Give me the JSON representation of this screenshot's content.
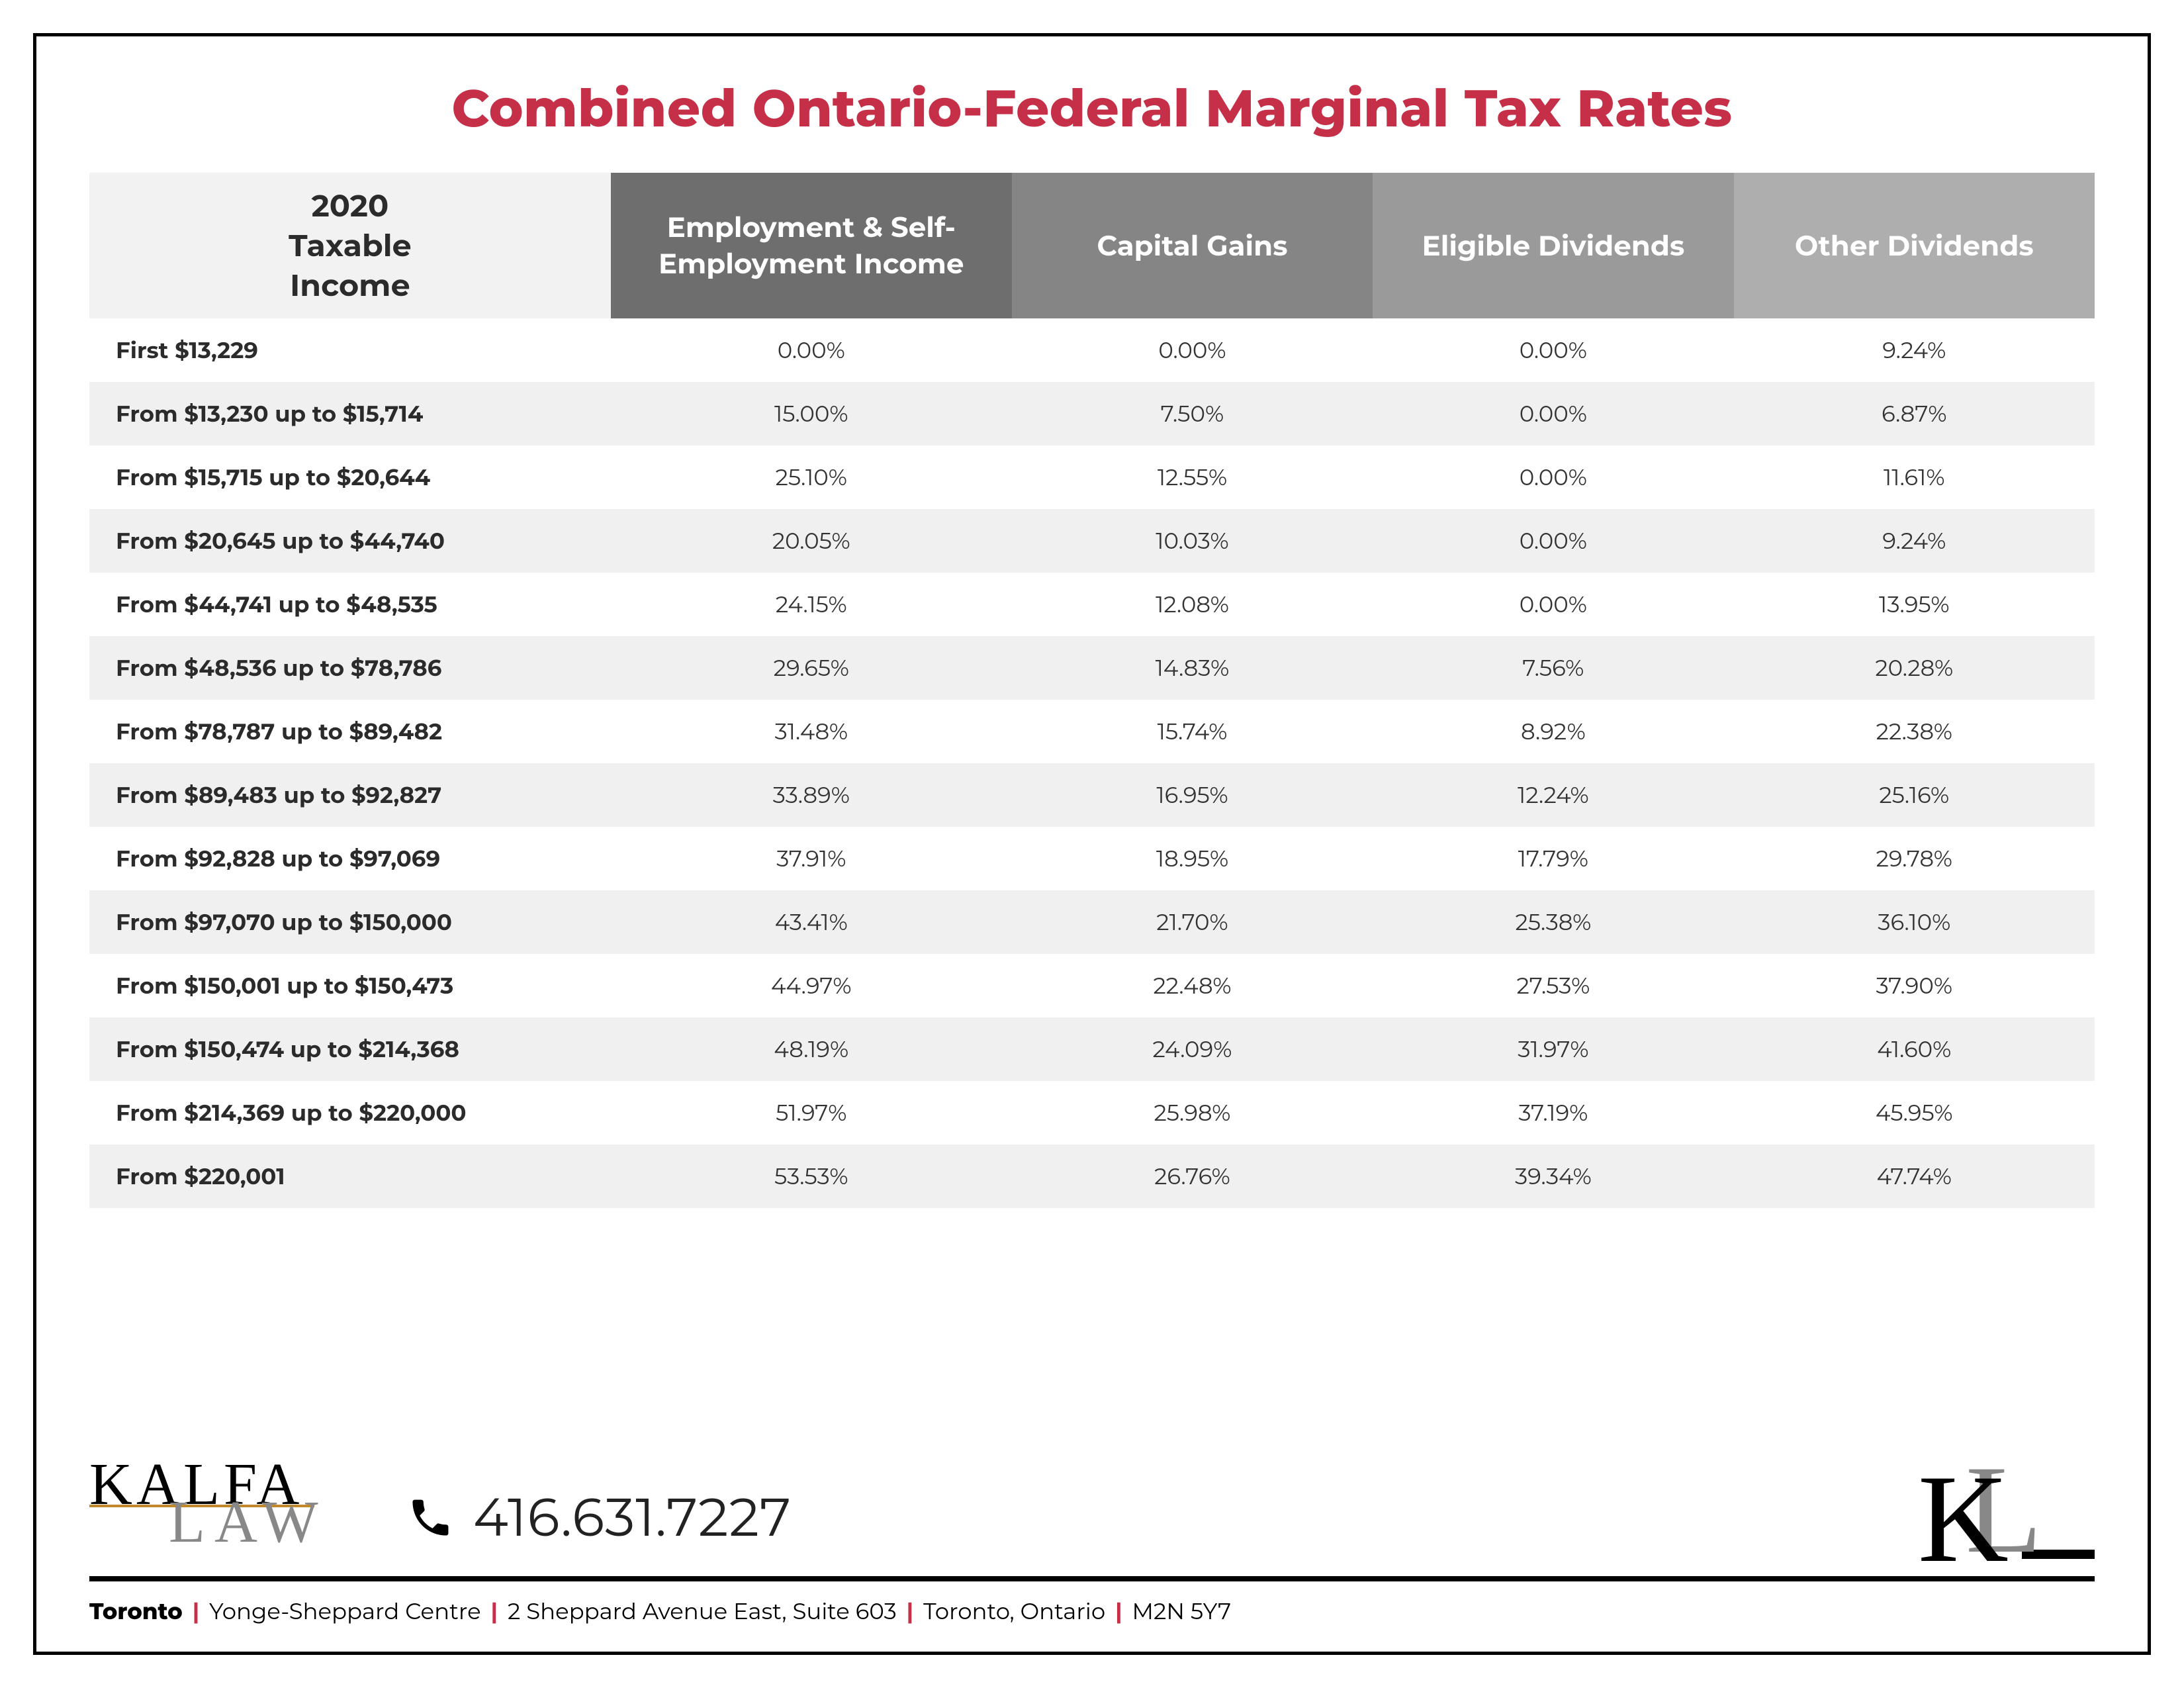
{
  "title": "Combined Ontario-Federal Marginal Tax Rates",
  "colors": {
    "accent": "#c53048",
    "header_bgs": [
      "#f2f2f2",
      "#6e6e6e",
      "#858585",
      "#9a9a9a",
      "#aeaeae"
    ],
    "row_alt": "#f0f0f0",
    "text": "#333333",
    "gold": "#c08a2a"
  },
  "table": {
    "columns": [
      "2020\nTaxable\nIncome",
      "Employment & Self-Employment Income",
      "Capital Gains",
      "Eligible Dividends",
      "Other Dividends"
    ],
    "rows": [
      {
        "bracket": "First $13,229",
        "v": [
          "0.00%",
          "0.00%",
          "0.00%",
          "9.24%"
        ]
      },
      {
        "bracket": "From $13,230 up to $15,714",
        "v": [
          "15.00%",
          "7.50%",
          "0.00%",
          "6.87%"
        ]
      },
      {
        "bracket": "From $15,715 up to $20,644",
        "v": [
          "25.10%",
          "12.55%",
          "0.00%",
          "11.61%"
        ]
      },
      {
        "bracket": "From $20,645 up to $44,740",
        "v": [
          "20.05%",
          "10.03%",
          "0.00%",
          "9.24%"
        ]
      },
      {
        "bracket": "From $44,741 up to $48,535",
        "v": [
          "24.15%",
          "12.08%",
          "0.00%",
          "13.95%"
        ]
      },
      {
        "bracket": "From $48,536 up to $78,786",
        "v": [
          "29.65%",
          "14.83%",
          "7.56%",
          "20.28%"
        ]
      },
      {
        "bracket": "From $78,787 up to $89,482",
        "v": [
          "31.48%",
          "15.74%",
          "8.92%",
          "22.38%"
        ]
      },
      {
        "bracket": "From $89,483 up to $92,827",
        "v": [
          "33.89%",
          "16.95%",
          "12.24%",
          "25.16%"
        ]
      },
      {
        "bracket": "From $92,828 up to $97,069",
        "v": [
          "37.91%",
          "18.95%",
          "17.79%",
          "29.78%"
        ]
      },
      {
        "bracket": "From $97,070 up to $150,000",
        "v": [
          "43.41%",
          "21.70%",
          "25.38%",
          "36.10%"
        ]
      },
      {
        "bracket": "From $150,001 up to $150,473",
        "v": [
          "44.97%",
          "22.48%",
          "27.53%",
          "37.90%"
        ]
      },
      {
        "bracket": "From $150,474 up to $214,368",
        "v": [
          "48.19%",
          "24.09%",
          "31.97%",
          "41.60%"
        ]
      },
      {
        "bracket": "From $214,369 up to $220,000",
        "v": [
          "51.97%",
          "25.98%",
          "37.19%",
          "45.95%"
        ]
      },
      {
        "bracket": "From $220,001",
        "v": [
          "53.53%",
          "26.76%",
          "39.34%",
          "47.74%"
        ]
      }
    ],
    "col_widths_pct": [
      26,
      20,
      18,
      18,
      18
    ]
  },
  "footer": {
    "logo_top": "KALFA",
    "logo_bottom": "LAW",
    "phone": "416.631.7227",
    "monogram_k": "K",
    "monogram_l": "L",
    "address": {
      "city": "Toronto",
      "parts": [
        "Yonge-Sheppard Centre",
        "2 Sheppard Avenue East, Suite 603",
        "Toronto, Ontario",
        "M2N 5Y7"
      ]
    }
  }
}
